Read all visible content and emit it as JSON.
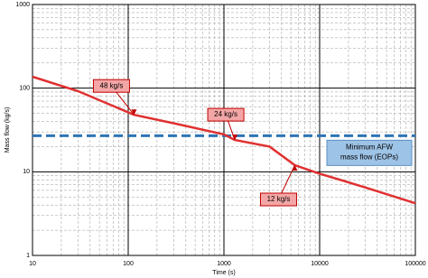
{
  "chart_data": {
    "type": "line",
    "x_label": "Time (s)",
    "y_label": "Mass flow (kg/s)",
    "xlog": true,
    "ylog": true,
    "grid": true,
    "xlim": [
      10,
      100000
    ],
    "ylim": [
      1,
      1000
    ],
    "xticks": [
      10,
      100,
      1000,
      10000,
      100000
    ],
    "yticks": [
      1,
      10,
      100,
      1000
    ],
    "series": [
      {
        "color": "#e03030",
        "x": [
          10,
          30,
          115,
          300,
          1000,
          1300,
          3000,
          5500,
          10000,
          30000,
          100000
        ],
        "values": [
          137,
          92,
          48,
          38,
          28,
          24,
          20,
          12,
          9.5,
          6.5,
          4.2
        ]
      }
    ],
    "reference_line": {
      "y": 27,
      "color": "#2e74b5",
      "label": [
        "Minimum AFW",
        "mass flow (EOPs)"
      ]
    },
    "annotations": [
      {
        "text": "48 kg/s",
        "x": 115,
        "y": 48
      },
      {
        "text": "24 kg/s",
        "x": 1300,
        "y": 24
      },
      {
        "text": "12 kg/s",
        "x": 5500,
        "y": 12
      }
    ]
  }
}
